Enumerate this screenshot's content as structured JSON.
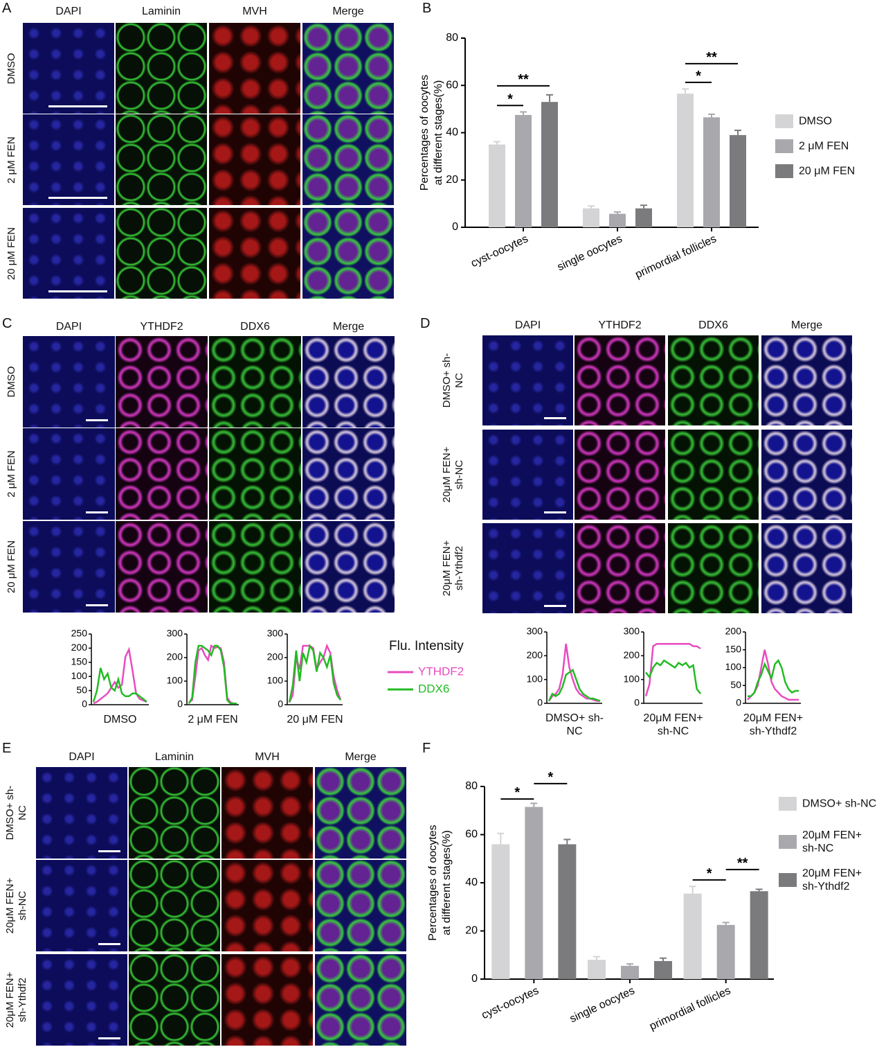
{
  "panels": {
    "A": {
      "letter": "A",
      "columns": [
        "DAPI",
        "Laminin",
        "MVH",
        "Merge"
      ],
      "rows": [
        "DMSO",
        "2 μM FEN",
        "20 μM FEN"
      ]
    },
    "C": {
      "letter": "C",
      "columns": [
        "DAPI",
        "YTHDF2",
        "DDX6",
        "Merge"
      ],
      "rows": [
        "DMSO",
        "2 μM FEN",
        "20 μM FEN"
      ]
    },
    "D": {
      "letter": "D",
      "columns": [
        "DAPI",
        "YTHDF2",
        "DDX6",
        "Merge"
      ],
      "rows": [
        "DMSO+ sh-NC",
        "20μM FEN+ sh-NC",
        "20μM FEN+ sh-Ythdf2"
      ]
    },
    "E": {
      "letter": "E",
      "columns": [
        "DAPI",
        "Laminin",
        "MVH",
        "Merge"
      ],
      "rows": [
        "DMSO+ sh-NC",
        "20μM FEN+ sh-NC",
        "20μM FEN+ sh-Ythdf2"
      ]
    }
  },
  "profile_legend_title": "Flu. Intensity",
  "chart_data": [
    {
      "type": "bar",
      "panel": "B",
      "y_label": [
        "Percentages of oocytes",
        " at different stages(%)"
      ],
      "categories": [
        "cyst-oocytes",
        "single oocytes",
        "primordial follicles"
      ],
      "series": [
        {
          "name": "DMSO",
          "color": "#d4d4d6",
          "values": [
            35,
            8,
            56.5
          ],
          "errors": [
            1.2,
            1,
            2
          ]
        },
        {
          "name": "2 μM FEN",
          "color": "#a9a8ad",
          "values": [
            47.5,
            5.7,
            46.5
          ],
          "errors": [
            1.3,
            0.8,
            1.3
          ]
        },
        {
          "name": "20 μM FEN",
          "color": "#7b7b7e",
          "values": [
            53,
            8,
            39
          ],
          "errors": [
            3,
            1.3,
            2
          ]
        }
      ],
      "ylim": [
        0,
        80
      ],
      "yticks": [
        0,
        20,
        40,
        60,
        80
      ],
      "annotations": [
        {
          "text": "*",
          "category": 0,
          "from": 0,
          "to": 1,
          "y": 51.5
        },
        {
          "text": "**",
          "category": 0,
          "from": 0,
          "to": 2,
          "y": 59.8
        },
        {
          "text": "*",
          "category": 2,
          "from": 0,
          "to": 1,
          "y": 61.3
        },
        {
          "text": "**",
          "category": 2,
          "from": 0,
          "to": 2,
          "y": 69.2
        }
      ]
    },
    {
      "type": "bar",
      "panel": "F",
      "y_label": [
        "Percentages of oocytes",
        " at different stages(%)"
      ],
      "categories": [
        "cyst-oocytes",
        "single oocytes",
        "primordial follicles"
      ],
      "series": [
        {
          "name": "DMSO+ sh-NC",
          "color": "#d4d4d6",
          "values": [
            56,
            8,
            35.5
          ],
          "errors": [
            4.5,
            1.3,
            3
          ]
        },
        {
          "name": "20μM FEN+ sh-NC",
          "color": "#a9a8ad",
          "values": [
            71.5,
            5.5,
            22.5
          ],
          "errors": [
            1.5,
            0.8,
            1
          ]
        },
        {
          "name": "20μM FEN+ sh-Ythdf2",
          "color": "#7b7b7e",
          "values": [
            56,
            7.5,
            36.5
          ],
          "errors": [
            2,
            1.2,
            0.8
          ]
        }
      ],
      "ylim": [
        0,
        80
      ],
      "yticks": [
        0,
        20,
        40,
        60,
        80
      ],
      "annotations": [
        {
          "text": "*",
          "category": 0,
          "from": 0,
          "to": 1,
          "y": 74.8
        },
        {
          "text": "*",
          "category": 0,
          "from": 1,
          "to": 2,
          "y": 81.2
        },
        {
          "text": "*",
          "category": 2,
          "from": 0,
          "to": 1,
          "y": 41.2
        },
        {
          "text": "**",
          "category": 2,
          "from": 1,
          "to": 2,
          "y": 45.5
        }
      ]
    },
    {
      "type": "line",
      "title": "DMSO",
      "ylim": [
        0,
        250
      ],
      "yticks": [
        0,
        50,
        100,
        150,
        200,
        250
      ],
      "series": [
        {
          "name": "YTHDF2",
          "color": "#e84bbf",
          "values": [
            5,
            10,
            20,
            30,
            40,
            60,
            80,
            60,
            70,
            170,
            195,
            120,
            40,
            20,
            15,
            10
          ]
        },
        {
          "name": "DDX6",
          "color": "#22bb22",
          "values": [
            10,
            50,
            130,
            90,
            110,
            60,
            50,
            90,
            40,
            30,
            30,
            40,
            40,
            30,
            20,
            10
          ]
        }
      ]
    },
    {
      "type": "line",
      "title": "2 μM FEN",
      "ylim": [
        0,
        300
      ],
      "yticks": [
        0,
        100,
        200,
        300
      ],
      "series": [
        {
          "name": "YTHDF2",
          "color": "#e84bbf",
          "values": [
            10,
            20,
            120,
            230,
            240,
            210,
            190,
            250,
            240,
            245,
            240,
            180,
            30,
            10,
            5,
            5
          ]
        },
        {
          "name": "DDX6",
          "color": "#22bb22",
          "values": [
            5,
            30,
            180,
            250,
            250,
            240,
            230,
            210,
            250,
            250,
            230,
            160,
            20,
            5,
            5,
            5
          ]
        }
      ]
    },
    {
      "type": "line",
      "title": "20 μM FEN",
      "ylim": [
        0,
        300
      ],
      "yticks": [
        0,
        100,
        200,
        300
      ],
      "series": [
        {
          "name": "YTHDF2",
          "color": "#e84bbf",
          "values": [
            10,
            40,
            200,
            150,
            250,
            250,
            250,
            240,
            150,
            180,
            200,
            250,
            220,
            120,
            60,
            20
          ]
        },
        {
          "name": "DDX6",
          "color": "#22bb22",
          "values": [
            10,
            80,
            230,
            100,
            220,
            180,
            250,
            230,
            140,
            220,
            200,
            160,
            210,
            90,
            40,
            20
          ]
        }
      ]
    },
    {
      "type": "line",
      "title": "DMSO+ sh-NC",
      "ylim": [
        0,
        300
      ],
      "yticks": [
        0,
        100,
        200,
        300
      ],
      "series": [
        {
          "name": "YTHDF2",
          "color": "#e84bbf",
          "values": [
            10,
            30,
            40,
            60,
            120,
            250,
            150,
            100,
            60,
            40,
            30,
            20,
            20,
            15,
            10,
            10
          ]
        },
        {
          "name": "DDX6",
          "color": "#22bb22",
          "values": [
            10,
            40,
            30,
            40,
            70,
            120,
            130,
            140,
            100,
            60,
            40,
            30,
            20,
            20,
            15,
            10
          ]
        }
      ]
    },
    {
      "type": "line",
      "title": "20μM FEN+ sh-NC",
      "ylim": [
        0,
        300
      ],
      "yticks": [
        0,
        100,
        200,
        300
      ],
      "series": [
        {
          "name": "YTHDF2",
          "color": "#e84bbf",
          "values": [
            30,
            80,
            240,
            250,
            250,
            250,
            250,
            250,
            250,
            250,
            250,
            250,
            250,
            240,
            240,
            230
          ]
        },
        {
          "name": "DDX6",
          "color": "#22bb22",
          "values": [
            130,
            110,
            150,
            170,
            160,
            180,
            170,
            160,
            150,
            170,
            160,
            170,
            150,
            160,
            60,
            40
          ]
        }
      ]
    },
    {
      "type": "line",
      "title": "20μM FEN+ sh-Ythdf2",
      "ylim": [
        0,
        200
      ],
      "yticks": [
        0,
        50,
        100,
        150,
        200
      ],
      "series": [
        {
          "name": "YTHDF2",
          "color": "#e84bbf",
          "values": [
            10,
            20,
            30,
            50,
            100,
            150,
            110,
            60,
            40,
            30,
            20,
            15,
            10,
            10,
            10,
            10
          ]
        },
        {
          "name": "DDX6",
          "color": "#22bb22",
          "values": [
            20,
            20,
            30,
            60,
            80,
            110,
            90,
            70,
            110,
            120,
            100,
            60,
            40,
            30,
            35,
            35
          ]
        }
      ]
    }
  ]
}
